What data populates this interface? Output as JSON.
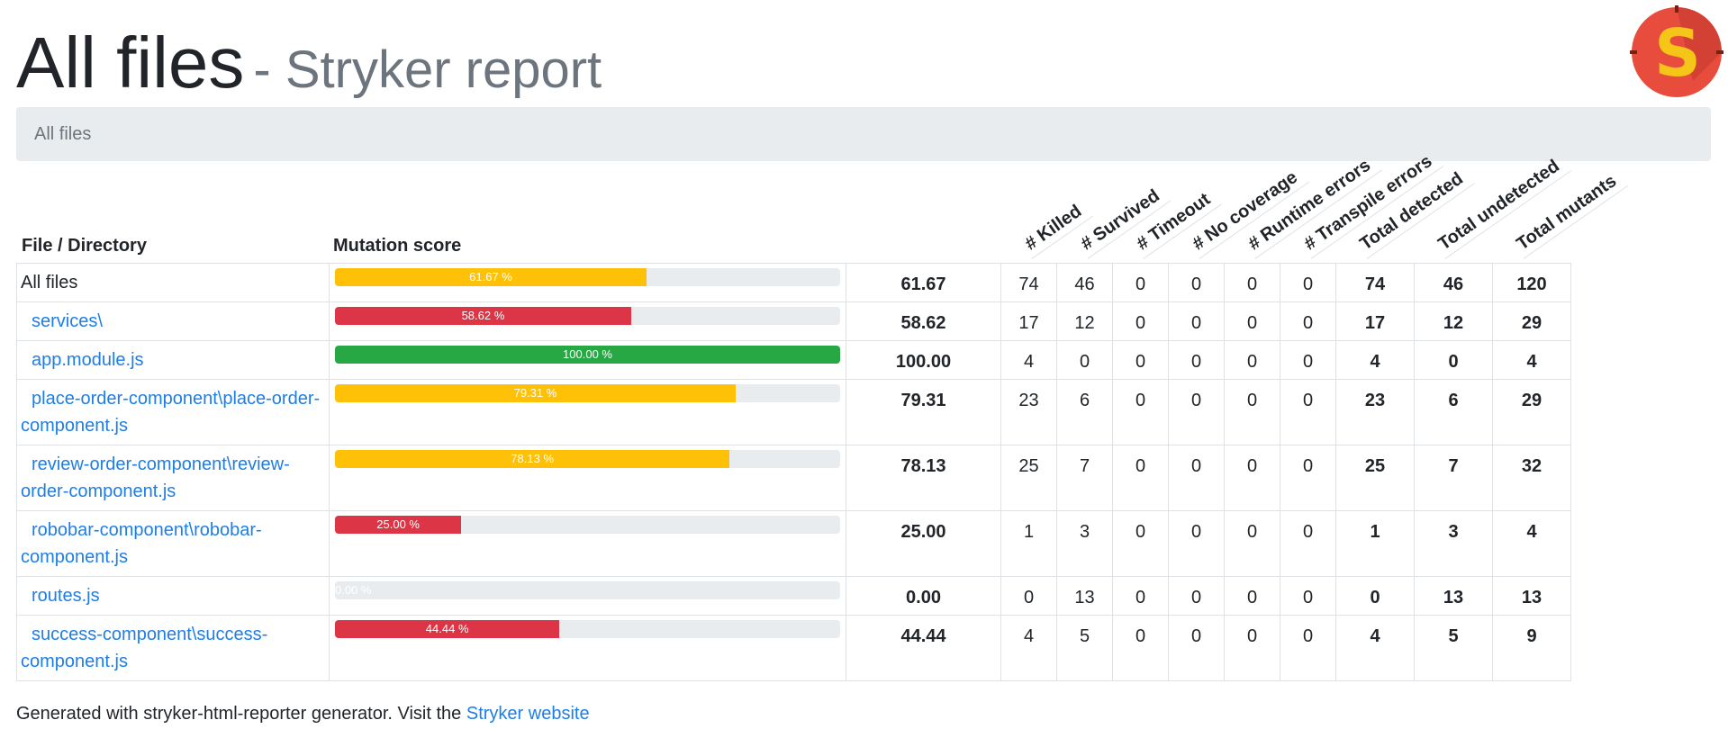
{
  "header": {
    "title": "All files",
    "subtitle": "- Stryker report",
    "logo_letter": "S"
  },
  "breadcrumb": {
    "label": "All files"
  },
  "table": {
    "col_file": "File / Directory",
    "col_score": "Mutation score",
    "rotated_headers": [
      "# Killed",
      "# Survived",
      "# Timeout",
      "# No coverage",
      "# Runtime errors",
      "# Transpile errors",
      "Total detected",
      "Total undetected",
      "Total mutants"
    ],
    "rows": [
      {
        "name": "All files",
        "link": false,
        "percent": 61.67,
        "bar_label": "61.67 %",
        "score": "61.67",
        "level": "warn",
        "killed": "74",
        "survived": "46",
        "timeout": "0",
        "no_coverage": "0",
        "runtime_errors": "0",
        "transpile_errors": "0",
        "total_detected": "74",
        "total_undetected": "46",
        "total_mutants": "120"
      },
      {
        "name": "services\\",
        "link": true,
        "percent": 58.62,
        "bar_label": "58.62 %",
        "score": "58.62",
        "level": "danger",
        "killed": "17",
        "survived": "12",
        "timeout": "0",
        "no_coverage": "0",
        "runtime_errors": "0",
        "transpile_errors": "0",
        "total_detected": "17",
        "total_undetected": "12",
        "total_mutants": "29"
      },
      {
        "name": "app.module.js",
        "link": true,
        "percent": 100.0,
        "bar_label": "100.00 %",
        "score": "100.00",
        "level": "success",
        "killed": "4",
        "survived": "0",
        "timeout": "0",
        "no_coverage": "0",
        "runtime_errors": "0",
        "transpile_errors": "0",
        "total_detected": "4",
        "total_undetected": "0",
        "total_mutants": "4"
      },
      {
        "name": "place-order-component\\place-order-component.js",
        "link": true,
        "percent": 79.31,
        "bar_label": "79.31 %",
        "score": "79.31",
        "level": "warn",
        "killed": "23",
        "survived": "6",
        "timeout": "0",
        "no_coverage": "0",
        "runtime_errors": "0",
        "transpile_errors": "0",
        "total_detected": "23",
        "total_undetected": "6",
        "total_mutants": "29"
      },
      {
        "name": "review-order-component\\review-order-component.js",
        "link": true,
        "percent": 78.13,
        "bar_label": "78.13 %",
        "score": "78.13",
        "level": "warn",
        "killed": "25",
        "survived": "7",
        "timeout": "0",
        "no_coverage": "0",
        "runtime_errors": "0",
        "transpile_errors": "0",
        "total_detected": "25",
        "total_undetected": "7",
        "total_mutants": "32"
      },
      {
        "name": "robobar-component\\robobar-component.js",
        "link": true,
        "percent": 25.0,
        "bar_label": "25.00 %",
        "score": "25.00",
        "level": "danger",
        "killed": "1",
        "survived": "3",
        "timeout": "0",
        "no_coverage": "0",
        "runtime_errors": "0",
        "transpile_errors": "0",
        "total_detected": "1",
        "total_undetected": "3",
        "total_mutants": "4"
      },
      {
        "name": "routes.js",
        "link": true,
        "percent": 0.0,
        "bar_label": "0.00 %",
        "score": "0.00",
        "level": "danger",
        "killed": "0",
        "survived": "13",
        "timeout": "0",
        "no_coverage": "0",
        "runtime_errors": "0",
        "transpile_errors": "0",
        "total_detected": "0",
        "total_undetected": "13",
        "total_mutants": "13"
      },
      {
        "name": "success-component\\success-component.js",
        "link": true,
        "percent": 44.44,
        "bar_label": "44.44 %",
        "score": "44.44",
        "level": "danger",
        "killed": "4",
        "survived": "5",
        "timeout": "0",
        "no_coverage": "0",
        "runtime_errors": "0",
        "transpile_errors": "0",
        "total_detected": "4",
        "total_undetected": "5",
        "total_mutants": "9"
      }
    ]
  },
  "footer": {
    "text": "Generated with stryker-html-reporter generator. Visit the",
    "link_label": "Stryker website"
  },
  "colors": {
    "warn": "#ffc107",
    "danger": "#dc3545",
    "success": "#28a745",
    "link": "#1e7ee6",
    "breadcrumb_bg": "#e9ecef"
  }
}
